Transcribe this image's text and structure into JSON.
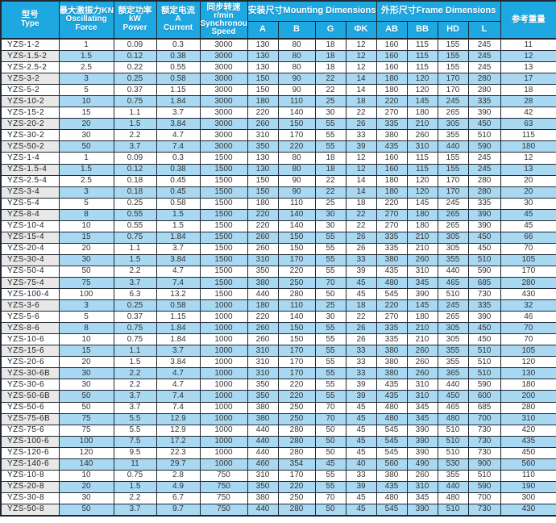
{
  "colors": {
    "header_bg": "#1ea8e2",
    "row_blue": "#a9d9f2",
    "row_gray": "#e8e8e8",
    "border": "#1f2730",
    "header_text": "#ffffff",
    "body_text": "#333333"
  },
  "table": {
    "header": {
      "type": {
        "zh": "型号",
        "en": "Type"
      },
      "force": {
        "zh": "最大激振力KN",
        "en1": "Oscillating",
        "en2": "Force"
      },
      "power": {
        "zh": "额定功率",
        "unit": "kW",
        "en": "Power"
      },
      "current": {
        "zh": "额定电流",
        "unit": "A",
        "en": "Current"
      },
      "speed": {
        "zh": "同步转速",
        "unit": "r/min",
        "en1": "Synchronous",
        "en2": "Speed"
      },
      "mounting": {
        "label": "安装尺寸Mounting Dimensions",
        "cols": [
          "A",
          "B",
          "G",
          "ΦK"
        ]
      },
      "frame": {
        "label": "外形尺寸Frame Dimensions",
        "cols": [
          "AB",
          "BB",
          "HD",
          "L"
        ]
      },
      "weight": {
        "zh": "参考重量"
      }
    },
    "rows": [
      [
        "YZS-1-2",
        "1",
        "0.09",
        "0.3",
        "3000",
        "130",
        "80",
        "18",
        "12",
        "160",
        "115",
        "155",
        "245",
        "11"
      ],
      [
        "YZS-1.5-2",
        "1.5",
        "0.12",
        "0.38",
        "3000",
        "130",
        "80",
        "18",
        "12",
        "160",
        "115",
        "155",
        "245",
        "12"
      ],
      [
        "YZS-2.5-2",
        "2.5",
        "0.22",
        "0.55",
        "3000",
        "130",
        "80",
        "18",
        "12",
        "160",
        "115",
        "155",
        "245",
        "13"
      ],
      [
        "YZS-3-2",
        "3",
        "0.25",
        "0.58",
        "3000",
        "150",
        "90",
        "22",
        "14",
        "180",
        "120",
        "170",
        "280",
        "17"
      ],
      [
        "YZS-5-2",
        "5",
        "0.37",
        "1.15",
        "3000",
        "150",
        "90",
        "22",
        "14",
        "180",
        "120",
        "170",
        "280",
        "18"
      ],
      [
        "YZS-10-2",
        "10",
        "0.75",
        "1.84",
        "3000",
        "180",
        "110",
        "25",
        "18",
        "220",
        "145",
        "245",
        "335",
        "28"
      ],
      [
        "YZS-15-2",
        "15",
        "1.1",
        "3.7",
        "3000",
        "220",
        "140",
        "30",
        "22",
        "270",
        "180",
        "265",
        "390",
        "42"
      ],
      [
        "YZS-20-2",
        "20",
        "1.5",
        "3.84",
        "3000",
        "260",
        "150",
        "55",
        "26",
        "335",
        "210",
        "305",
        "450",
        "63"
      ],
      [
        "YZS-30-2",
        "30",
        "2.2",
        "4.7",
        "3000",
        "310",
        "170",
        "55",
        "33",
        "380",
        "260",
        "355",
        "510",
        "115"
      ],
      [
        "YZS-50-2",
        "50",
        "3.7",
        "7.4",
        "3000",
        "350",
        "220",
        "55",
        "39",
        "435",
        "310",
        "440",
        "590",
        "180"
      ],
      [
        "YZS-1-4",
        "1",
        "0.09",
        "0.3",
        "1500",
        "130",
        "80",
        "18",
        "12",
        "160",
        "115",
        "155",
        "245",
        "12"
      ],
      [
        "YZS-1.5-4",
        "1.5",
        "0.12",
        "0.38",
        "1500",
        "130",
        "80",
        "18",
        "12",
        "160",
        "115",
        "155",
        "245",
        "13"
      ],
      [
        "YZS-2.5-4",
        "2.5",
        "0.18",
        "0.45",
        "1500",
        "150",
        "90",
        "22",
        "14",
        "180",
        "120",
        "170",
        "280",
        "20"
      ],
      [
        "YZS-3-4",
        "3",
        "0.18",
        "0.45",
        "1500",
        "150",
        "90",
        "22",
        "14",
        "180",
        "120",
        "170",
        "280",
        "20"
      ],
      [
        "YZS-5-4",
        "5",
        "0.25",
        "0.58",
        "1500",
        "180",
        "110",
        "25",
        "18",
        "220",
        "145",
        "245",
        "335",
        "30"
      ],
      [
        "YZS-8-4",
        "8",
        "0.55",
        "1.5",
        "1500",
        "220",
        "140",
        "30",
        "22",
        "270",
        "180",
        "265",
        "390",
        "45"
      ],
      [
        "YZS-10-4",
        "10",
        "0.55",
        "1.5",
        "1500",
        "220",
        "140",
        "30",
        "22",
        "270",
        "180",
        "265",
        "390",
        "45"
      ],
      [
        "YZS-15-4",
        "15",
        "0.75",
        "1.84",
        "1500",
        "260",
        "150",
        "55",
        "26",
        "335",
        "210",
        "305",
        "450",
        "66"
      ],
      [
        "YZS-20-4",
        "20",
        "1.1",
        "3.7",
        "1500",
        "260",
        "150",
        "55",
        "26",
        "335",
        "210",
        "305",
        "450",
        "70"
      ],
      [
        "YZS-30-4",
        "30",
        "1.5",
        "3.84",
        "1500",
        "310",
        "170",
        "55",
        "33",
        "380",
        "260",
        "355",
        "510",
        "105"
      ],
      [
        "YZS-50-4",
        "50",
        "2.2",
        "4.7",
        "1500",
        "350",
        "220",
        "55",
        "39",
        "435",
        "310",
        "440",
        "590",
        "170"
      ],
      [
        "YZS-75-4",
        "75",
        "3.7",
        "7.4",
        "1500",
        "380",
        "250",
        "70",
        "45",
        "480",
        "345",
        "465",
        "685",
        "280"
      ],
      [
        "YZS-100-4",
        "100",
        "6.3",
        "13.2",
        "1500",
        "440",
        "280",
        "50",
        "45",
        "545",
        "390",
        "510",
        "730",
        "430"
      ],
      [
        "YZS-3-6",
        "3",
        "0.25",
        "0.58",
        "1000",
        "180",
        "110",
        "25",
        "18",
        "220",
        "145",
        "245",
        "335",
        "32"
      ],
      [
        "YZS-5-6",
        "5",
        "0.37",
        "1.15",
        "1000",
        "220",
        "140",
        "30",
        "22",
        "270",
        "180",
        "265",
        "390",
        "46"
      ],
      [
        "YZS-8-6",
        "8",
        "0.75",
        "1.84",
        "1000",
        "260",
        "150",
        "55",
        "26",
        "335",
        "210",
        "305",
        "450",
        "70"
      ],
      [
        "YZS-10-6",
        "10",
        "0.75",
        "1.84",
        "1000",
        "260",
        "150",
        "55",
        "26",
        "335",
        "210",
        "305",
        "450",
        "70"
      ],
      [
        "YZS-15-6",
        "15",
        "1.1",
        "3.7",
        "1000",
        "310",
        "170",
        "55",
        "33",
        "380",
        "260",
        "355",
        "510",
        "105"
      ],
      [
        "YZS-20-6",
        "20",
        "1.5",
        "3.84",
        "1000",
        "310",
        "170",
        "55",
        "33",
        "380",
        "260",
        "355",
        "510",
        "120"
      ],
      [
        "YZS-30-6B",
        "30",
        "2.2",
        "4.7",
        "1000",
        "310",
        "170",
        "55",
        "33",
        "380",
        "260",
        "365",
        "510",
        "130"
      ],
      [
        "YZS-30-6",
        "30",
        "2.2",
        "4.7",
        "1000",
        "350",
        "220",
        "55",
        "39",
        "435",
        "310",
        "440",
        "590",
        "180"
      ],
      [
        "YZS-50-6B",
        "50",
        "3.7",
        "7.4",
        "1000",
        "350",
        "220",
        "55",
        "39",
        "435",
        "310",
        "450",
        "600",
        "200"
      ],
      [
        "YZS-50-6",
        "50",
        "3.7",
        "7.4",
        "1000",
        "380",
        "250",
        "70",
        "45",
        "480",
        "345",
        "465",
        "685",
        "280"
      ],
      [
        "YZS-75-6B",
        "75",
        "5.5",
        "12.9",
        "1000",
        "380",
        "250",
        "70",
        "45",
        "480",
        "345",
        "480",
        "700",
        "310"
      ],
      [
        "YZS-75-6",
        "75",
        "5.5",
        "12.9",
        "1000",
        "440",
        "280",
        "50",
        "45",
        "545",
        "390",
        "510",
        "730",
        "420"
      ],
      [
        "YZS-100-6",
        "100",
        "7.5",
        "17.2",
        "1000",
        "440",
        "280",
        "50",
        "45",
        "545",
        "390",
        "510",
        "730",
        "435"
      ],
      [
        "YZS-120-6",
        "120",
        "9.5",
        "22.3",
        "1000",
        "440",
        "280",
        "50",
        "45",
        "545",
        "390",
        "510",
        "730",
        "450"
      ],
      [
        "YZS-140-6",
        "140",
        "11",
        "29.7",
        "1000",
        "460",
        "354",
        "45",
        "40",
        "560",
        "490",
        "530",
        "900",
        "560"
      ],
      [
        "YZS-10-8",
        "10",
        "0.75",
        "2.8",
        "750",
        "310",
        "170",
        "55",
        "33",
        "380",
        "260",
        "355",
        "510",
        "110"
      ],
      [
        "YZS-20-8",
        "20",
        "1.5",
        "4.9",
        "750",
        "350",
        "220",
        "55",
        "39",
        "435",
        "310",
        "440",
        "590",
        "190"
      ],
      [
        "YZS-30-8",
        "30",
        "2.2",
        "6.7",
        "750",
        "380",
        "250",
        "70",
        "45",
        "480",
        "345",
        "480",
        "700",
        "300"
      ],
      [
        "YZS-50-8",
        "50",
        "3.7",
        "9.7",
        "750",
        "440",
        "280",
        "50",
        "45",
        "545",
        "390",
        "510",
        "730",
        "430"
      ]
    ]
  }
}
